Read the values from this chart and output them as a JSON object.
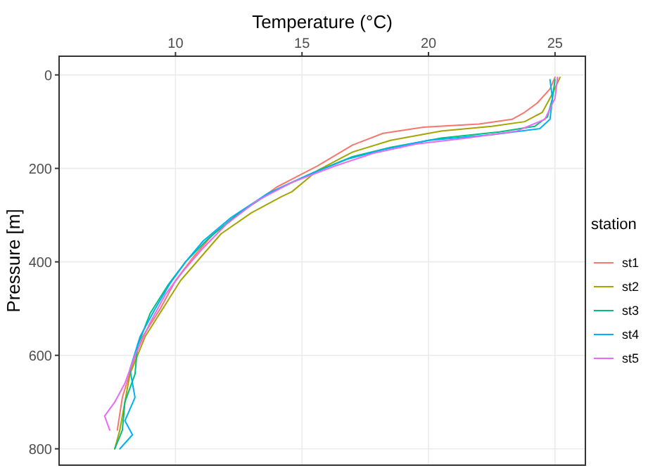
{
  "chart_data": {
    "type": "line",
    "xlabel": "Temperature (°C)",
    "ylabel": "Pressure [m]",
    "legend_title": "station",
    "legend": "right",
    "grid": true,
    "xlim": [
      5.4,
      26.2
    ],
    "xticks": [
      10,
      15,
      20,
      25
    ],
    "ylim": [
      835,
      -40
    ],
    "yticks": [
      0,
      200,
      400,
      600,
      800
    ],
    "series": [
      {
        "name": "st1",
        "color": "#F8766D",
        "x": [
          25.0,
          24.8,
          24.3,
          23.8,
          23.3,
          22.0,
          19.8,
          18.2,
          17.0,
          15.6,
          14.0,
          12.7,
          11.5,
          10.7,
          10.0,
          9.4,
          8.7,
          8.3,
          7.9,
          7.7
        ],
        "values": [
          5,
          30,
          60,
          80,
          95,
          105,
          112,
          125,
          150,
          195,
          240,
          290,
          340,
          390,
          440,
          500,
          560,
          620,
          690,
          760
        ]
      },
      {
        "name": "st2",
        "color": "#A3A500",
        "x": [
          25.2,
          24.9,
          24.5,
          23.8,
          22.5,
          20.5,
          18.5,
          17.0,
          15.6,
          14.6,
          14.2,
          13.0,
          11.8,
          11.0,
          10.2,
          9.5,
          8.8,
          8.2,
          8.0,
          7.8,
          7.6
        ],
        "values": [
          5,
          40,
          80,
          100,
          110,
          120,
          140,
          165,
          205,
          250,
          260,
          295,
          340,
          390,
          440,
          500,
          560,
          640,
          700,
          760,
          800
        ]
      },
      {
        "name": "st3",
        "color": "#00BF7D",
        "x": [
          25.0,
          24.9,
          24.7,
          24.2,
          22.8,
          20.5,
          18.5,
          17.0,
          15.4,
          13.8,
          12.4,
          11.3,
          10.4,
          9.7,
          9.0,
          8.5,
          8.4,
          8.0,
          7.9,
          7.6
        ],
        "values": [
          10,
          50,
          90,
          110,
          122,
          135,
          155,
          175,
          210,
          250,
          300,
          350,
          400,
          450,
          510,
          580,
          640,
          700,
          760,
          800
        ]
      },
      {
        "name": "st4",
        "color": "#00B0F6",
        "x": [
          24.8,
          24.9,
          24.8,
          24.4,
          22.5,
          20.0,
          18.2,
          16.8,
          15.2,
          13.6,
          12.2,
          11.1,
          10.4,
          9.8,
          9.2,
          8.6,
          8.2,
          8.4,
          8.0,
          8.3,
          7.8
        ],
        "values": [
          10,
          50,
          95,
          115,
          128,
          140,
          160,
          180,
          215,
          255,
          305,
          355,
          400,
          445,
          500,
          560,
          630,
          690,
          740,
          770,
          800
        ]
      },
      {
        "name": "st5",
        "color": "#E76BF3",
        "x": [
          25.1,
          25.0,
          24.6,
          23.5,
          21.5,
          19.5,
          17.8,
          16.3,
          14.6,
          13.2,
          12.0,
          11.1,
          10.3,
          9.6,
          9.0,
          8.4,
          8.0,
          7.6,
          7.2,
          7.4
        ],
        "values": [
          5,
          50,
          95,
          120,
          135,
          148,
          168,
          195,
          230,
          270,
          320,
          370,
          420,
          470,
          530,
          600,
          660,
          700,
          730,
          760
        ]
      }
    ]
  }
}
